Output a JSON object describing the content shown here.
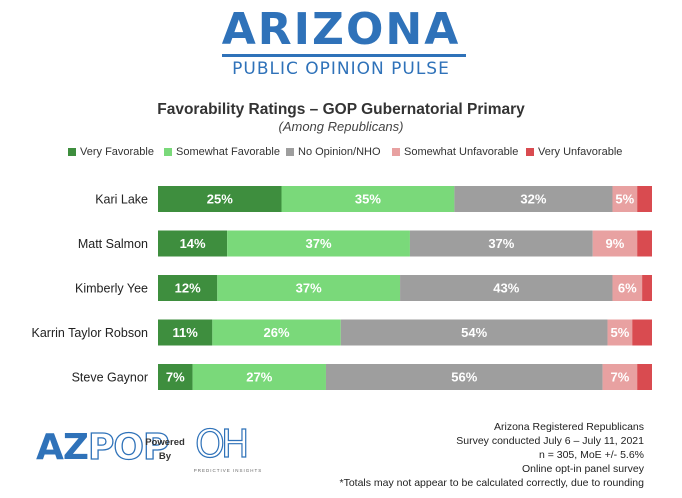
{
  "header": {
    "brand_title": "ARIZONA",
    "brand_subtitle": "PUBLIC OPINION PULSE"
  },
  "chart_data": {
    "type": "bar",
    "orientation": "horizontal",
    "stacked": true,
    "title": "Favorability Ratings  – GOP Gubernatorial Primary",
    "subtitle": "(Among Republicans)",
    "legend_position": "top",
    "categories": [
      "Kari Lake",
      "Matt Salmon",
      "Kimberly Yee",
      "Karrin Taylor Robson",
      "Steve Gaynor"
    ],
    "series": [
      {
        "name": "Very Favorable",
        "color": "#3e8e3e",
        "values": [
          25,
          14,
          12,
          11,
          7
        ],
        "labels": [
          "25%",
          "14%",
          "12%",
          "11%",
          "7%"
        ]
      },
      {
        "name": "Somewhat Favorable",
        "color": "#7ad97a",
        "values": [
          35,
          37,
          37,
          26,
          27
        ],
        "labels": [
          "35%",
          "37%",
          "37%",
          "26%",
          "27%"
        ]
      },
      {
        "name": "No Opinion/NHO",
        "color": "#9e9e9e",
        "values": [
          32,
          37,
          43,
          54,
          56
        ],
        "labels": [
          "32%",
          "37%",
          "43%",
          "54%",
          "56%"
        ]
      },
      {
        "name": "Somewhat Unfavorable",
        "color": "#e8a1a1",
        "values": [
          5,
          9,
          6,
          5,
          7
        ],
        "labels": [
          "5%",
          "9%",
          "6%",
          "5%",
          "7%"
        ]
      },
      {
        "name": "Very Unfavorable",
        "color": "#d94b50",
        "values": [
          3,
          3,
          2,
          4,
          3
        ],
        "labels": [
          "",
          "",
          "",
          "",
          ""
        ]
      }
    ],
    "xlim": [
      0,
      100
    ],
    "grid": false
  },
  "footer": {
    "logo_az": "AZ",
    "logo_pop": "POP",
    "powered_by": "Powered By",
    "oh_logo": "OH",
    "oh_sub": "PREDICTIVE INSIGHTS",
    "notes": [
      "Arizona Registered Republicans",
      "Survey conducted July 6 – July 11, 2021",
      "n = 305, MoE +/- 5.6%",
      "Online opt-in panel survey",
      "*Totals may not appear to be calculated correctly, due to rounding"
    ]
  }
}
